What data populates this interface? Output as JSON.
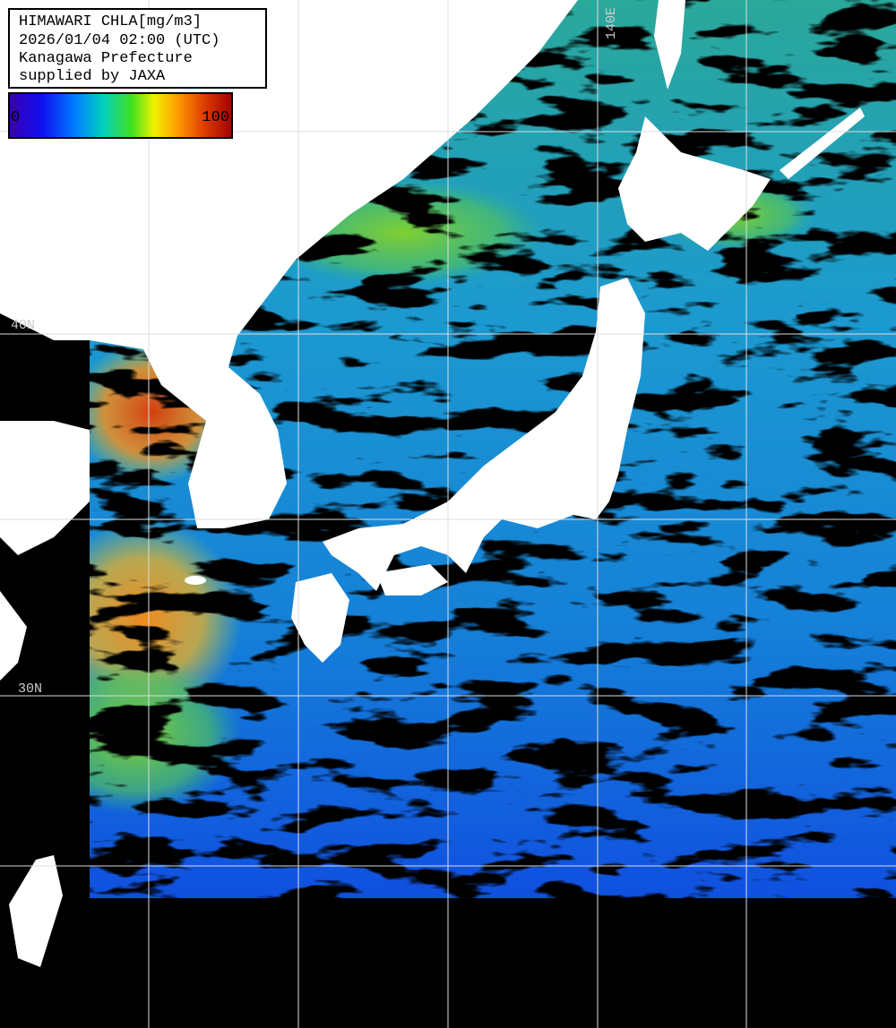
{
  "legend": {
    "lines": [
      "HIMAWARI CHLA[mg/m3]",
      "2026/01/04 02:00 (UTC)",
      "Kanagawa Prefecture",
      "supplied by JAXA"
    ]
  },
  "colorbar": {
    "min_label": "0",
    "max_label": "100"
  },
  "grid_labels": {
    "longitude": [
      "140E"
    ],
    "latitude": [
      "40N",
      "30N"
    ]
  }
}
